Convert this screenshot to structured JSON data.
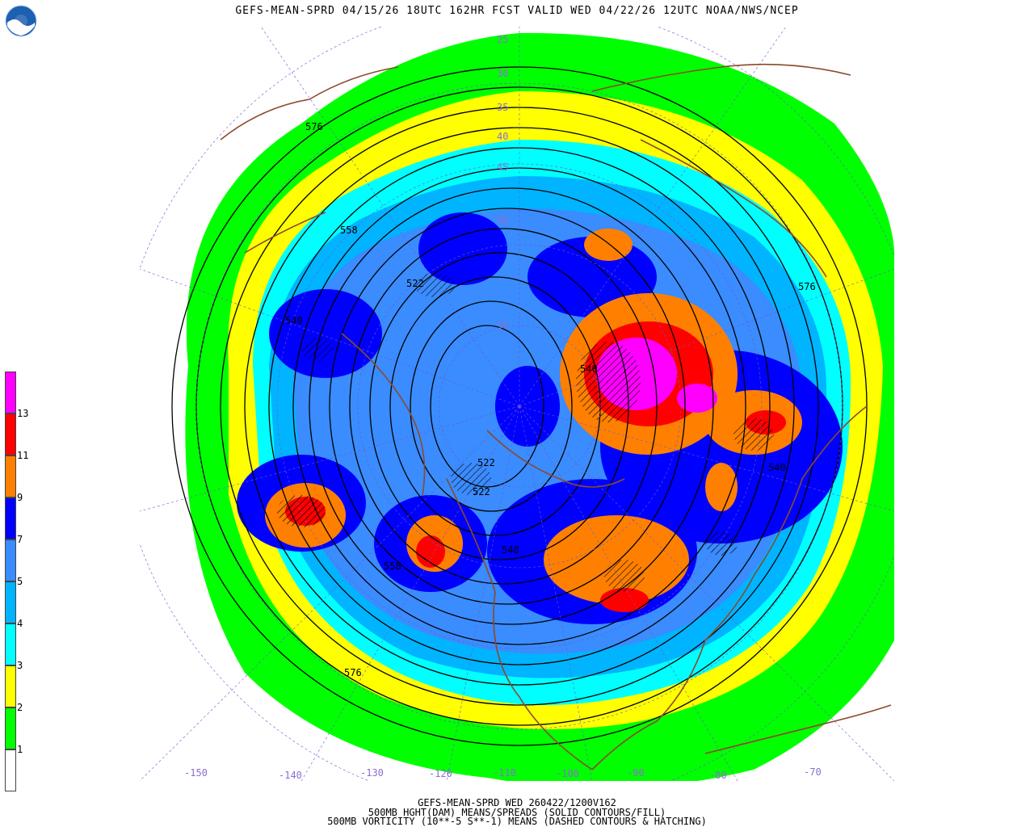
{
  "header": {
    "title": "GEFS-MEAN-SPRD 04/15/26 18UTC 162HR FCST VALID WED 04/22/26 12UTC NOAA/NWS/NCEP",
    "logo_text": "NOAA"
  },
  "colorbar": {
    "levels": [
      {
        "label": "13",
        "color": "#ff00ff"
      },
      {
        "label": "11",
        "color": "#ff0000"
      },
      {
        "label": "9",
        "color": "#ff8000"
      },
      {
        "label": "7",
        "color": "#0000ff"
      },
      {
        "label": "5",
        "color": "#3a8cff"
      },
      {
        "label": "4",
        "color": "#00b4ff"
      },
      {
        "label": "3",
        "color": "#00ffff"
      },
      {
        "label": "2",
        "color": "#ffff00"
      },
      {
        "label": "1",
        "color": "#00ff00"
      }
    ],
    "bottom_color": "#ffffff"
  },
  "map": {
    "contour_labels": [
      "576",
      "558",
      "522",
      "540",
      "522",
      "522",
      "540",
      "558",
      "576",
      "576",
      "540",
      "540"
    ],
    "longitude_labels": [
      "-150",
      "-140",
      "-130",
      "-120",
      "-110",
      "-100",
      "-90",
      "-80",
      "-70"
    ],
    "latitude_labels": [
      "25",
      "30",
      "35",
      "40",
      "45",
      "50",
      "55"
    ]
  },
  "footer": {
    "line1": "GEFS-MEAN-SPRD WED 260422/1200V162",
    "line2": "500MB HGHT(DAM) MEANS/SPREADS (SOLID CONTOURS/FILL)",
    "line3": "500MB VORTICITY (10**-5 S**-1) MEANS (DASHED CONTOURS & HATCHING)"
  }
}
